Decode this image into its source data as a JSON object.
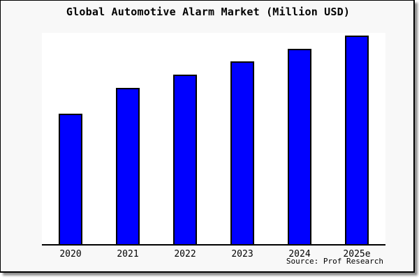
{
  "page": {
    "title": "Global Automotive Alarm Market (Million USD)",
    "source_note": "Source: Prof Research"
  },
  "chart_data": {
    "type": "bar",
    "title": "Global Automotive Alarm Market (Million USD)",
    "categories": [
      "2020",
      "2021",
      "2022",
      "2023",
      "2024",
      "2025e"
    ],
    "values": [
      189,
      226,
      245,
      264,
      282,
      301
    ],
    "value_scale": "relative bar heights in px; y-axis has no visible ticks or labels",
    "xlabel": "",
    "ylabel": "",
    "grid": false,
    "legend": false,
    "source": "Source: Prof Research",
    "colors": {
      "bar_fill": "#0000ff",
      "bar_border": "#000000",
      "plot_bg": "#ffffff",
      "fig_bg": "#f8f8f8",
      "axis": "#000000",
      "text": "#000000"
    }
  }
}
